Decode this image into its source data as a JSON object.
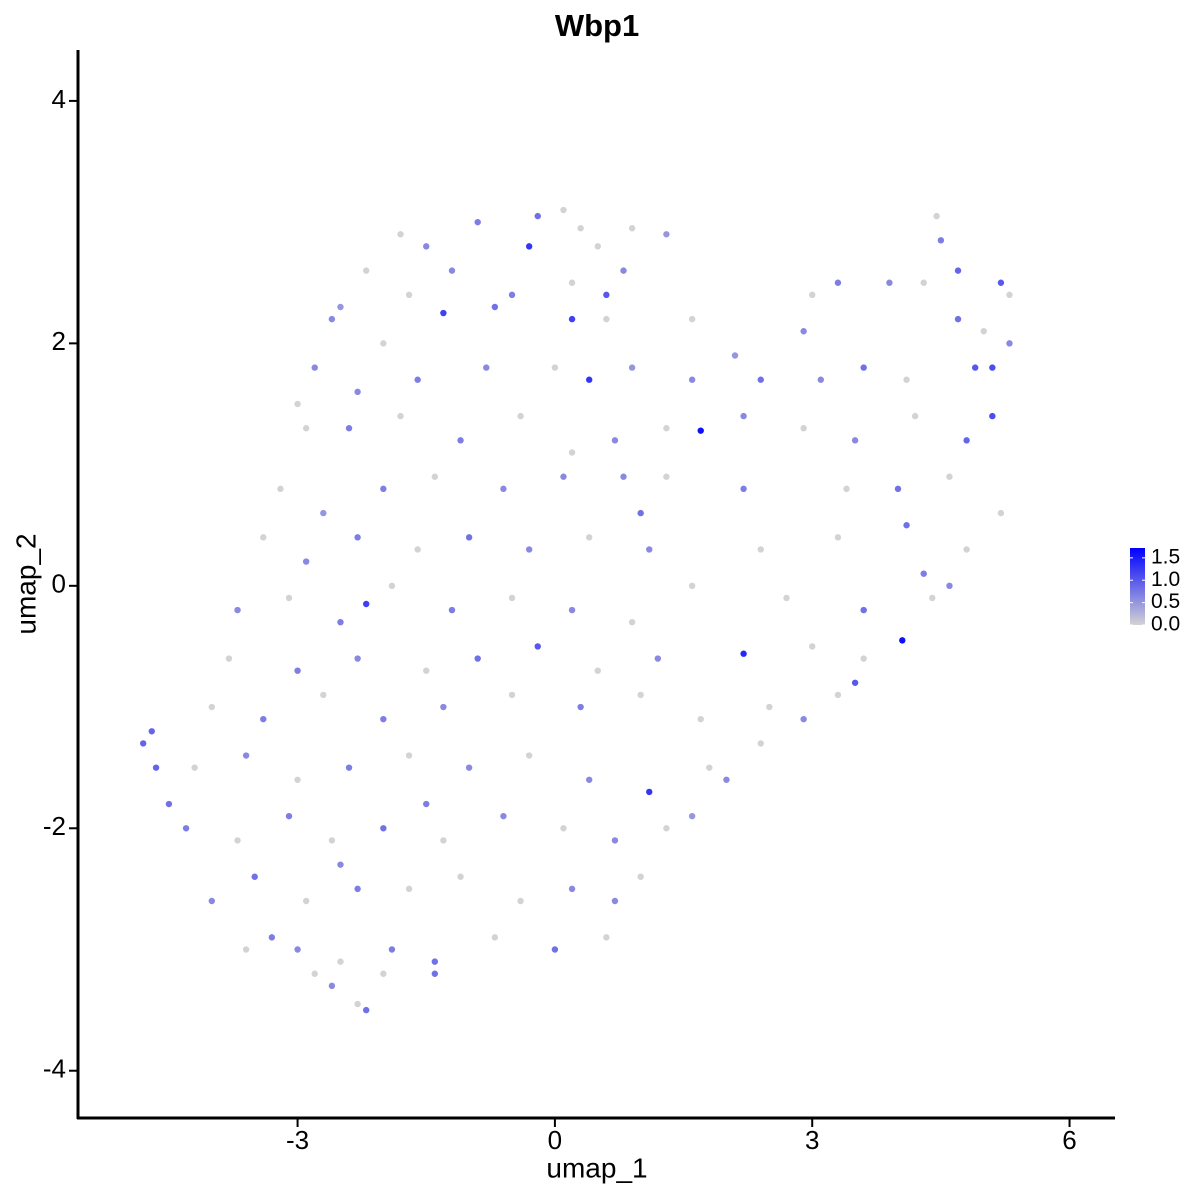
{
  "chart_data": {
    "type": "scatter",
    "title": "Wbp1",
    "x_label": "umap_1",
    "y_label": "umap_2",
    "x": [
      -0.2,
      0.1,
      0.3,
      -0.9,
      -1.5,
      -1.8,
      0.9,
      -0.3,
      0.5,
      4.45,
      4.5,
      1.3,
      -2.2,
      -1.2,
      -0.5,
      0.2,
      0.6,
      0.8,
      3.3,
      3.9,
      4.3,
      4.7,
      5.2,
      5.3,
      -2.5,
      -1.7,
      3.0,
      -2.6,
      -1.3,
      -0.7,
      0.2,
      0.6,
      4.7,
      5.0,
      5.3,
      1.6,
      2.9,
      -2.0,
      -2.8,
      -2.3,
      -1.6,
      -0.8,
      0,
      0.4,
      0.9,
      1.6,
      2.1,
      2.4,
      3.1,
      3.6,
      4.1,
      4.9,
      5.1,
      -3.0,
      -2.9,
      -2.4,
      -1.8,
      -1.1,
      -0.4,
      0.2,
      0.7,
      1.3,
      1.7,
      2.2,
      2.9,
      3.5,
      4.2,
      4.8,
      5.1,
      -3.2,
      -2.7,
      -2.0,
      -1.4,
      -0.6,
      0.1,
      0.8,
      1.3,
      2.2,
      3.4,
      4.0,
      4.6,
      5.2,
      1.0,
      -3.4,
      -2.9,
      -2.3,
      -1.6,
      -1.0,
      -0.3,
      0.4,
      1.1,
      2.4,
      3.3,
      4.1,
      4.8,
      4.3,
      -3.7,
      -3.1,
      -2.5,
      -1.9,
      -1.2,
      -0.5,
      0.2,
      0.9,
      1.6,
      2.7,
      3.6,
      4.4,
      4.6,
      -2.2,
      -3.8,
      -3.0,
      -2.3,
      -1.5,
      -0.9,
      -0.2,
      0.5,
      1.2,
      2.2,
      3.0,
      4.05,
      3.6,
      -4.0,
      -3.4,
      -2.7,
      -2.0,
      -1.3,
      -0.5,
      0.3,
      1.0,
      1.7,
      2.5,
      3.3,
      3.5,
      2.9,
      -4.8,
      -4.7,
      -4.65,
      -4.5,
      -4.2,
      -3.6,
      -3.0,
      -2.4,
      -1.7,
      -1.0,
      -0.3,
      0.4,
      1.1,
      1.8,
      2.4,
      2.0,
      -4.3,
      -3.7,
      -3.1,
      -2.6,
      -2.0,
      -1.3,
      -0.6,
      0.1,
      0.7,
      1.3,
      1.6,
      -1.5,
      -4.0,
      -3.5,
      -2.9,
      -2.3,
      -1.7,
      -1.1,
      -0.4,
      0.2,
      0.7,
      1.0,
      -2.5,
      -3.6,
      -3.0,
      -2.5,
      -1.9,
      -1.4,
      -0.7,
      0,
      0.6,
      -3.3,
      -2.8,
      -2.2,
      -2.3,
      -2.6,
      -2.0,
      -1.4
    ],
    "y": [
      3.05,
      3.1,
      2.95,
      3.0,
      2.8,
      2.9,
      2.95,
      2.8,
      2.8,
      3.05,
      2.85,
      2.9,
      2.6,
      2.6,
      2.4,
      2.5,
      2.4,
      2.6,
      2.5,
      2.5,
      2.5,
      2.6,
      2.5,
      2.4,
      2.3,
      2.4,
      2.4,
      2.2,
      2.25,
      2.3,
      2.2,
      2.2,
      2.2,
      2.1,
      2.0,
      2.2,
      2.1,
      2.0,
      1.8,
      1.6,
      1.7,
      1.8,
      1.8,
      1.7,
      1.8,
      1.7,
      1.9,
      1.7,
      1.7,
      1.8,
      1.7,
      1.8,
      1.8,
      1.5,
      1.3,
      1.3,
      1.4,
      1.2,
      1.4,
      1.1,
      1.2,
      1.3,
      1.28,
      1.4,
      1.3,
      1.2,
      1.4,
      1.2,
      1.4,
      0.8,
      0.6,
      0.8,
      0.9,
      0.8,
      0.9,
      0.9,
      0.9,
      0.8,
      0.8,
      0.8,
      0.9,
      0.6,
      0.6,
      0.4,
      0.2,
      0.4,
      0.3,
      0.4,
      0.3,
      0.4,
      0.3,
      0.3,
      0.4,
      0.5,
      0.3,
      0.1,
      -0.2,
      -0.1,
      -0.3,
      0,
      -0.2,
      -0.1,
      -0.2,
      -0.3,
      0,
      -0.1,
      -0.2,
      -0.1,
      0.0,
      -0.15,
      -0.6,
      -0.7,
      -0.6,
      -0.7,
      -0.6,
      -0.5,
      -0.7,
      -0.6,
      -0.56,
      -0.5,
      -0.45,
      -0.6,
      -1.0,
      -1.1,
      -0.9,
      -1.1,
      -1.0,
      -0.9,
      -1.0,
      -0.9,
      -1.1,
      -1.0,
      -0.9,
      -0.8,
      -1.1,
      -1.3,
      -1.2,
      -1.5,
      -1.8,
      -1.5,
      -1.4,
      -1.6,
      -1.5,
      -1.4,
      -1.5,
      -1.4,
      -1.6,
      -1.7,
      -1.5,
      -1.3,
      -1.6,
      -2.0,
      -2.1,
      -1.9,
      -2.1,
      -2.0,
      -2.1,
      -1.9,
      -2.0,
      -2.1,
      -2.0,
      -1.9,
      -1.8,
      -2.6,
      -2.4,
      -2.6,
      -2.5,
      -2.5,
      -2.4,
      -2.6,
      -2.5,
      -2.6,
      -2.4,
      -2.3,
      -3.0,
      -3.0,
      -3.1,
      -3.0,
      -3.1,
      -2.9,
      -3.0,
      -2.9,
      -2.9,
      -3.2,
      -3.5,
      -3.45,
      -3.3,
      -3.2,
      -3.2
    ],
    "values": [
      0.8,
      0,
      0,
      0.7,
      0.6,
      0,
      0,
      1.3,
      0,
      0,
      0.7,
      0.5,
      0,
      0.6,
      0.7,
      0,
      1.0,
      0.6,
      0.7,
      0.6,
      0,
      0.9,
      1.0,
      0,
      0.5,
      0,
      0,
      0.6,
      1.2,
      0.8,
      1.2,
      0,
      0.8,
      0,
      0.6,
      0,
      0.6,
      0,
      0.6,
      0.6,
      0.7,
      0.6,
      0,
      1.3,
      0.5,
      0.6,
      0.5,
      0.8,
      0.6,
      0.8,
      0,
      1.0,
      1.1,
      0,
      0,
      0.7,
      0,
      0.7,
      0,
      0,
      0.6,
      0,
      1.6,
      0.6,
      0,
      0.6,
      0,
      0.9,
      1.1,
      0,
      0.5,
      0.7,
      0,
      0.6,
      0.6,
      0.6,
      0,
      0.7,
      0,
      0.8,
      0,
      0,
      0.8,
      0,
      0.6,
      0.7,
      0,
      0.8,
      0.6,
      0,
      0.6,
      0,
      0,
      0.8,
      0,
      0.7,
      0.6,
      0,
      0.7,
      0,
      0.7,
      0,
      0.6,
      0,
      0,
      0,
      0.8,
      0,
      0.6,
      1.2,
      0,
      0.7,
      0.6,
      0,
      0.8,
      1.0,
      0,
      0.6,
      1.4,
      0,
      1.6,
      0,
      0,
      0.7,
      0,
      0.7,
      0.6,
      0,
      0.7,
      0,
      0,
      0,
      0,
      1.0,
      0.6,
      0.9,
      0.9,
      0.9,
      0.8,
      0,
      0.6,
      0,
      0.7,
      0,
      0.6,
      0,
      0.6,
      1.3,
      0,
      0,
      0.6,
      0.7,
      0,
      0.7,
      0,
      0.8,
      0,
      0.6,
      0,
      0.6,
      0,
      0.5,
      0.7,
      0.6,
      0.8,
      0,
      0.7,
      0,
      0,
      0,
      0.6,
      0.6,
      0,
      0.6,
      0,
      0.6,
      0,
      0.7,
      0.8,
      0,
      0.8,
      0,
      0.7,
      0,
      0.8,
      0,
      0.6,
      0,
      0.8
    ],
    "color_low": "#d3d3d3",
    "color_high": "#0000ff",
    "color_lim": [
      0,
      1.72
    ],
    "color_ticks": [
      {
        "value": 0,
        "label": "0.0"
      },
      0.5,
      {
        "value": 1,
        "label": "1.0"
      },
      1.5
    ],
    "xlim": [
      -5.56,
      6.53
    ],
    "ylim": [
      -4.39,
      4.42
    ],
    "xticks": [
      -3,
      0,
      3,
      6
    ],
    "yticks": [
      -4,
      -2,
      0,
      2,
      4
    ],
    "grid": false,
    "legend": "right"
  }
}
